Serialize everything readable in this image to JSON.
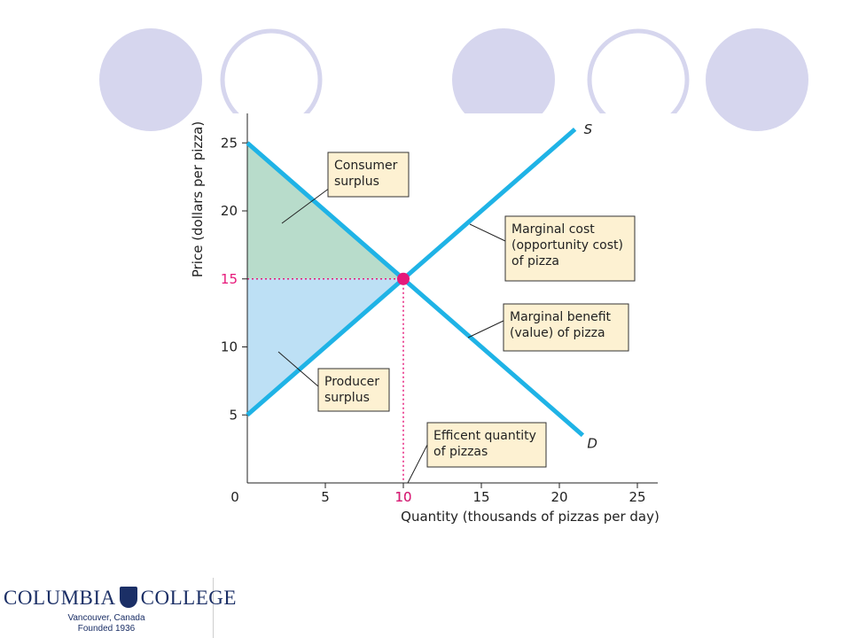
{
  "decor": {
    "accent": "#d6d6ee",
    "outline": "#d6d6ee"
  },
  "logo": {
    "left_word": "COLUMBIA",
    "right_word": "COLLEGE",
    "line1": "Vancouver, Canada",
    "line2": "Founded 1936",
    "color": "#1b2f66"
  },
  "chart_data": {
    "type": "line",
    "xlabel": "Quantity (thousands of pizzas per day)",
    "ylabel": "Price (dollars per pizza)",
    "xlim": [
      0,
      25
    ],
    "ylim": [
      0,
      27
    ],
    "x_ticks": [
      5,
      10,
      15,
      20,
      25
    ],
    "y_ticks": [
      5,
      10,
      20,
      25
    ],
    "origin_label": "0",
    "grid": false,
    "series": [
      {
        "name": "S",
        "color": "#1fb3e6",
        "points": [
          [
            0,
            5
          ],
          [
            21,
            26
          ]
        ]
      },
      {
        "name": "D",
        "color": "#1fb3e6",
        "points": [
          [
            0,
            25
          ],
          [
            21.5,
            3.5
          ]
        ]
      }
    ],
    "equilibrium": {
      "x": 10,
      "y": 15,
      "x_label": "10",
      "y_label": "15",
      "color": "#e6197a"
    },
    "areas": [
      {
        "label": "Consumer surplus",
        "color": "#b8dccb"
      },
      {
        "label": "Producer surplus",
        "color": "#bde0f5"
      }
    ],
    "annotations": [
      {
        "id": "consumer",
        "lines": [
          "Consumer",
          "surplus"
        ]
      },
      {
        "id": "producer",
        "lines": [
          "Producer",
          "surplus"
        ]
      },
      {
        "id": "mc",
        "lines": [
          "Marginal cost",
          "(opportunity cost)",
          "of pizza"
        ]
      },
      {
        "id": "mb",
        "lines": [
          "Marginal benefit",
          "(value) of pizza"
        ]
      },
      {
        "id": "eq",
        "lines": [
          "Efficent quantity",
          "of pizzas"
        ]
      }
    ]
  }
}
